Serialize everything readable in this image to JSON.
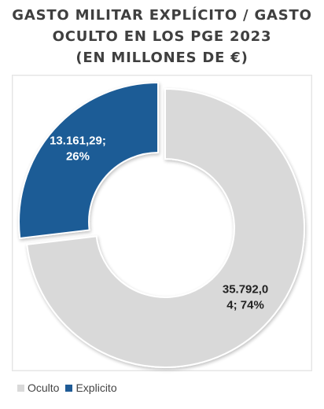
{
  "chart_data": {
    "type": "pie",
    "subtype": "donut",
    "title_lines": [
      "GASTO MILITAR EXPLÍCITO / GASTO",
      "OCULTO EN LOS PGE 2023",
      "(EN MILLONES DE €)"
    ],
    "slices": [
      {
        "name": "Oculto",
        "value": 35792.04,
        "percent": 74,
        "label_lines": [
          "35.792,0",
          "4; 74%"
        ],
        "color": "#d9d9d9",
        "exploded": false
      },
      {
        "name": "Explicito",
        "value": 13161.29,
        "percent": 26,
        "label_lines": [
          "13.161,29;",
          "26%"
        ],
        "color": "#1f5b96",
        "exploded": true
      }
    ],
    "start_angle": "12 o'clock, clockwise (Oculto first)",
    "legend": {
      "position": "bottom-left",
      "entries": [
        "Oculto",
        "Explicito"
      ]
    }
  }
}
